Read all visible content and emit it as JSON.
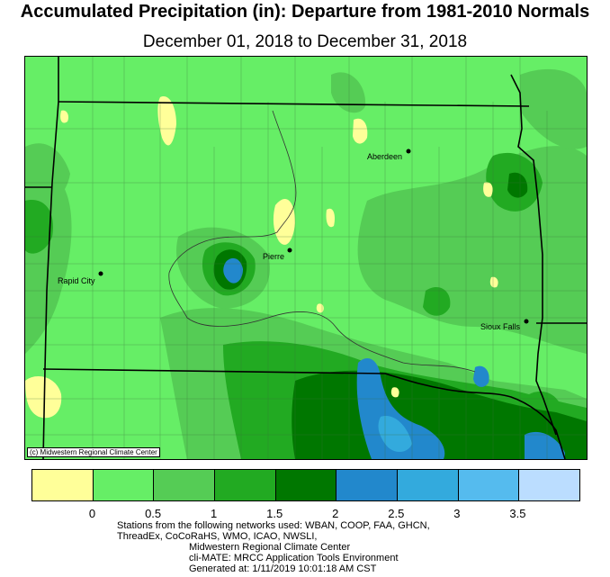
{
  "title": "Accumulated Precipitation (in): Departure from 1981-2010 Normals",
  "subtitle": "December 01, 2018 to December 31, 2018",
  "credit": "(c) Midwestern Regional Climate Center",
  "cities": [
    {
      "name": "Aberdeen"
    },
    {
      "name": "Pierre"
    },
    {
      "name": "Rapid City"
    },
    {
      "name": "Sioux Falls"
    }
  ],
  "legend": {
    "colors": [
      "#ffff99",
      "#66ee66",
      "#55cc55",
      "#22aa22",
      "#007700",
      "#2288cc",
      "#33aadd",
      "#55bbee",
      "#bbddff"
    ],
    "tick_labels": [
      "0",
      "0.5",
      "1",
      "1.5",
      "2",
      "2.5",
      "3",
      "3.5"
    ]
  },
  "footer": {
    "line1": "Stations from the following networks used: WBAN, COOP, FAA, GHCN,",
    "line2": "ThreadEx, CoCoRaHS, WMO, ICAO, NWSLI,",
    "line3": "Midwestern Regional Climate Center",
    "line4": "cli-MATE: MRCC Application Tools Environment",
    "line5": "Generated at: 1/11/2019 10:01:18 AM CST"
  }
}
